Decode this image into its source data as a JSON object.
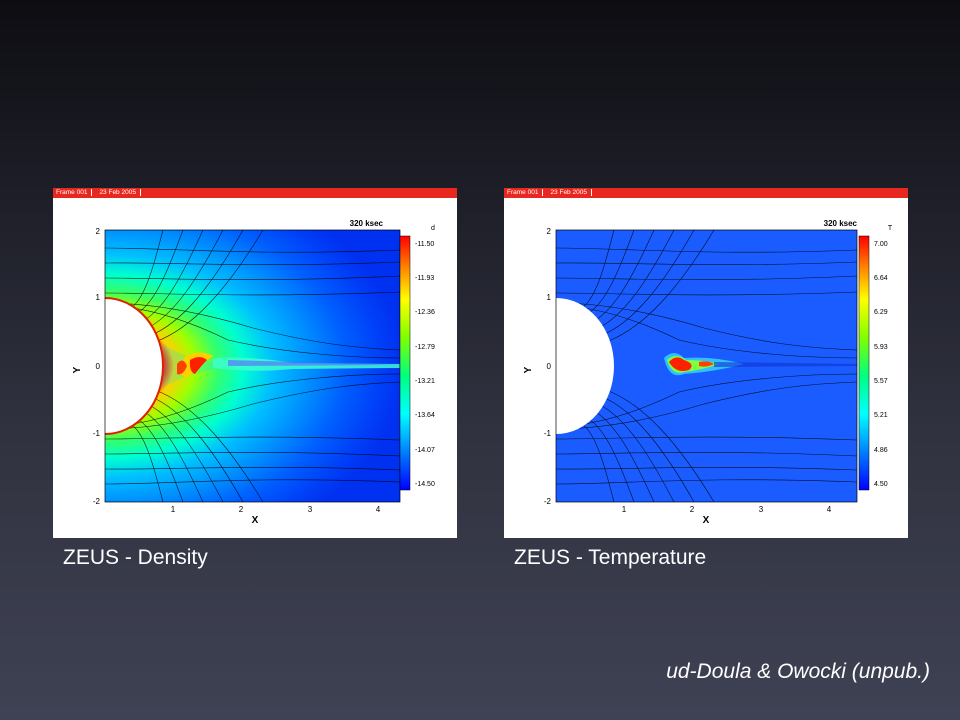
{
  "panels": [
    {
      "id": "density",
      "frame_label": "Frame 001",
      "date_label": "23 Feb 2005",
      "time_label": "320 ksec",
      "colorbar_title": "d",
      "colorbar_ticks": [
        "-11.50",
        "-11.93",
        "-12.36",
        "-12.79",
        "-13.21",
        "-13.64",
        "-14.07",
        "-14.50"
      ],
      "x_label": "X",
      "y_label": "Y",
      "x_ticks": [
        "1",
        "2",
        "3",
        "4"
      ],
      "y_ticks": [
        "2",
        "1",
        "0",
        "-1",
        "-2"
      ],
      "caption": "ZEUS - Density"
    },
    {
      "id": "temperature",
      "frame_label": "Frame 001",
      "date_label": "23 Feb 2005",
      "time_label": "320 ksec",
      "colorbar_title": "T",
      "colorbar_ticks": [
        "7.00",
        "6.64",
        "6.29",
        "5.93",
        "5.57",
        "5.21",
        "4.86",
        "4.50"
      ],
      "x_label": "X",
      "y_label": "Y",
      "x_ticks": [
        "1",
        "2",
        "3",
        "4"
      ],
      "y_ticks": [
        "2",
        "1",
        "0",
        "-1",
        "-2"
      ],
      "caption": "ZEUS - Temperature"
    }
  ],
  "credit": "ud-Doula & Owocki (unpub.)",
  "colors": {
    "colormap": [
      "#0000ff",
      "#0040ff",
      "#0080ff",
      "#00c0ff",
      "#00ffff",
      "#00ff80",
      "#80ff00",
      "#ffff00",
      "#ffc000",
      "#ff8000",
      "#ff0000"
    ],
    "header_bar": "#e8281e"
  }
}
